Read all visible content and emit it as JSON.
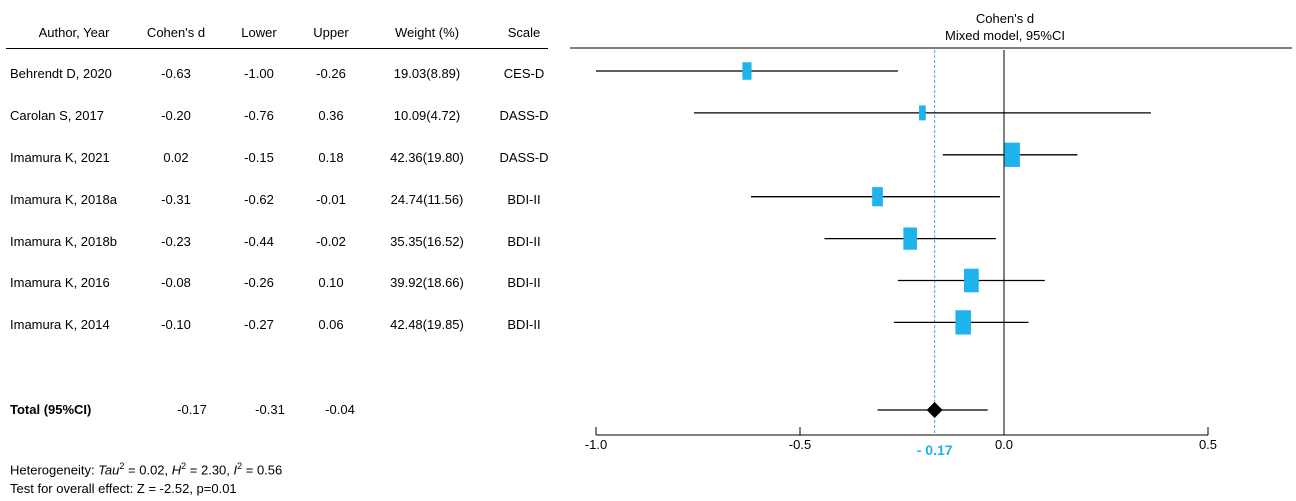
{
  "table": {
    "headers": [
      "Author, Year",
      "Cohen's d",
      "Lower",
      "Upper",
      "Weight (%)",
      "Scale"
    ],
    "rows": [
      {
        "study": "Behrendt D, 2020",
        "d": "-0.63",
        "lower": "-1.00",
        "upper": "-0.26",
        "weight": "19.03(8.89)",
        "scale": "CES-D"
      },
      {
        "study": "Carolan S, 2017",
        "d": "-0.20",
        "lower": "-0.76",
        "upper": "0.36",
        "weight": "10.09(4.72)",
        "scale": "DASS-D"
      },
      {
        "study": "Imamura K, 2021",
        "d": "0.02",
        "lower": "-0.15",
        "upper": "0.18",
        "weight": "42.36(19.80)",
        "scale": "DASS-D"
      },
      {
        "study": "Imamura K, 2018a",
        "d": "-0.31",
        "lower": "-0.62",
        "upper": "-0.01",
        "weight": "24.74(11.56)",
        "scale": "BDI-II"
      },
      {
        "study": "Imamura K, 2018b",
        "d": "-0.23",
        "lower": "-0.44",
        "upper": "-0.02",
        "weight": "35.35(16.52)",
        "scale": "BDI-II"
      },
      {
        "study": "Imamura K, 2016",
        "d": "-0.08",
        "lower": "-0.26",
        "upper": "0.10",
        "weight": "39.92(18.66)",
        "scale": "BDI-II"
      },
      {
        "study": "Imamura K, 2014",
        "d": "-0.10",
        "lower": "-0.27",
        "upper": "0.06",
        "weight": "42.48(19.85)",
        "scale": "BDI-II"
      }
    ],
    "total": {
      "label": "Total (95%CI)",
      "d": "-0.17",
      "lower": "-0.31",
      "upper": "-0.04"
    }
  },
  "footer": {
    "het_prefix": "Heterogeneity: ",
    "tau_sym": "Tau",
    "tau_val": " = 0.02, ",
    "h_sym": "H",
    "h_val": " = 2.30, ",
    "i_sym": "I",
    "i_val": " = 0.56",
    "sup": "2",
    "test": "Test for overall effect: Z = -2.52, p=0.01"
  },
  "chart_data": {
    "type": "forest",
    "title": "Cohen's d",
    "subtitle": "Mixed model, 95%CI",
    "xlim": [
      -1.0,
      0.5
    ],
    "xticks": [
      -1.0,
      -0.5,
      0.0,
      0.5
    ],
    "xtick_labels": [
      "-1.0",
      "-0.5",
      "0.0",
      "0.5"
    ],
    "pooled": {
      "d": -0.17,
      "lower": -0.31,
      "upper": -0.04,
      "label": "- 0.17"
    },
    "studies": [
      {
        "d": -0.63,
        "lower": -1.0,
        "upper": -0.26,
        "weight": 8.89
      },
      {
        "d": -0.2,
        "lower": -0.76,
        "upper": 0.36,
        "weight": 4.72
      },
      {
        "d": 0.02,
        "lower": -0.15,
        "upper": 0.18,
        "weight": 19.8
      },
      {
        "d": -0.31,
        "lower": -0.62,
        "upper": -0.01,
        "weight": 11.56
      },
      {
        "d": -0.23,
        "lower": -0.44,
        "upper": -0.02,
        "weight": 16.52
      },
      {
        "d": -0.08,
        "lower": -0.26,
        "upper": 0.1,
        "weight": 18.66
      },
      {
        "d": -0.1,
        "lower": -0.27,
        "upper": 0.06,
        "weight": 19.85
      }
    ],
    "colors": {
      "box": "#1fb3ec",
      "line": "#000000",
      "pooled_label": "#1fb3ec",
      "ref_line": "#1fb3ec"
    }
  }
}
